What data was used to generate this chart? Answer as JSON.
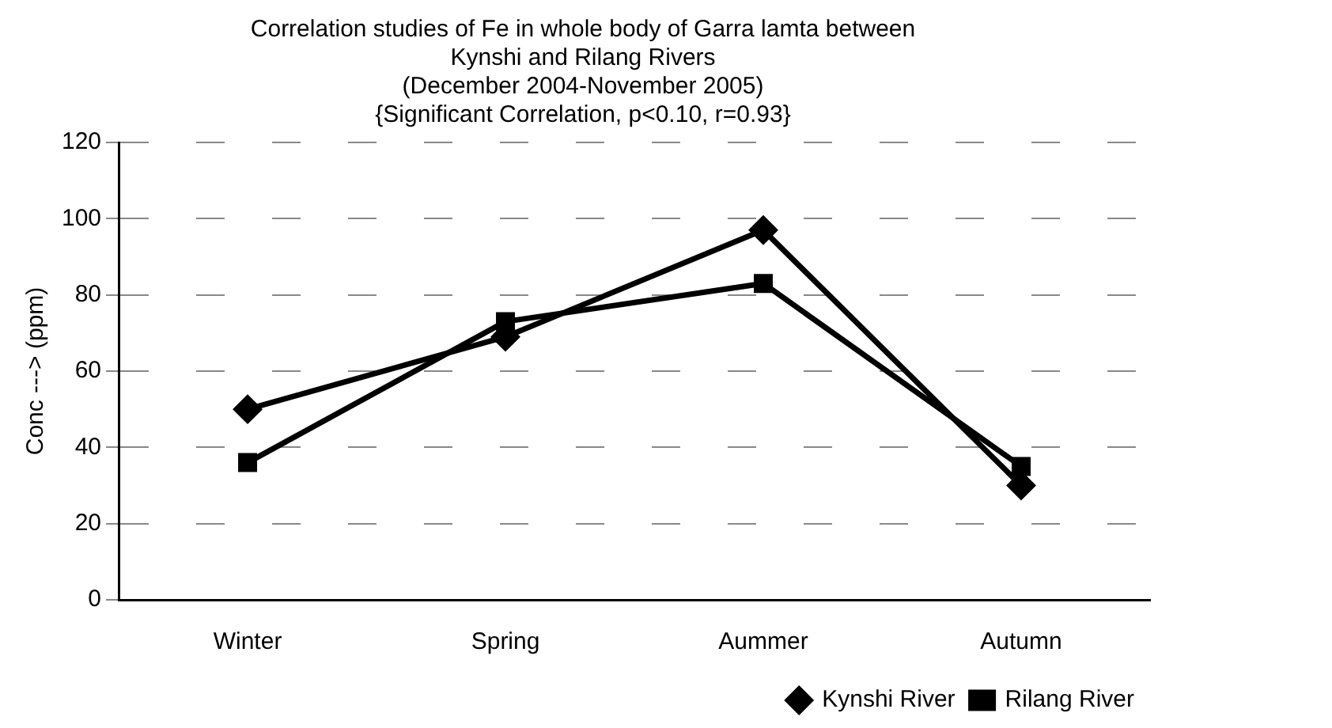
{
  "chart_data": {
    "type": "line",
    "title": "Correlation studies of Fe in whole body of Garra lamta between\nKynshi and Rilang Rivers",
    "subtitle": "(December 2004-November 2005)\n{Significant Correlation, p<0.10, r=0.93}",
    "ylabel": "Conc ---> (ppm)",
    "categories": [
      "Winter",
      "Spring",
      "Aummer",
      "Autumn"
    ],
    "series": [
      {
        "name": "Kynshi River",
        "color": "#000000",
        "marker": "diamond",
        "values": [
          50,
          69,
          97,
          30
        ]
      },
      {
        "name": "Rilang River",
        "color": "#000000",
        "marker": "square",
        "values": [
          36,
          73,
          83,
          35
        ]
      }
    ],
    "ylim": [
      0,
      120
    ],
    "yticks": [
      0,
      20,
      40,
      60,
      80,
      100,
      120
    ],
    "grid": "y",
    "legend": "bottom right",
    "line_style": "solid"
  }
}
